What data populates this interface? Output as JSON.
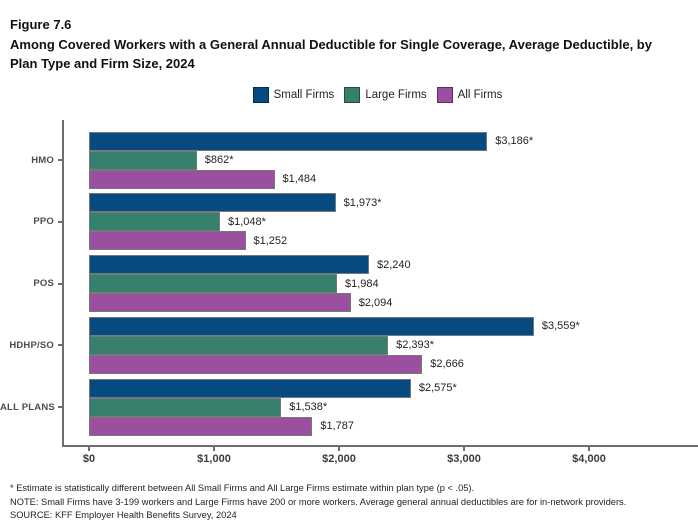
{
  "header": {
    "figure_label": "Figure 7.6",
    "title": "Among Covered Workers with a General Annual Deductible for Single Coverage, Average Deductible, by Plan Type and Firm Size, 2024"
  },
  "legend": [
    {
      "label": "Small Firms",
      "color": "#064a80"
    },
    {
      "label": "Large Firms",
      "color": "#38806e"
    },
    {
      "label": "All Firms",
      "color": "#9b509f"
    }
  ],
  "chart_data": {
    "type": "bar",
    "orientation": "horizontal",
    "title": "Among Covered Workers with a General Annual Deductible for Single Coverage, Average Deductible, by Plan Type and Firm Size, 2024",
    "categories": [
      "HMO",
      "PPO",
      "POS",
      "HDHP/SO",
      "ALL PLANS"
    ],
    "series": [
      {
        "name": "Small Firms",
        "color": "#064a80",
        "values": [
          3186,
          862,
          1484,
          1973,
          1048,
          1252,
          2240,
          1984,
          2094,
          3559,
          2393,
          2666,
          2575,
          1538,
          1787
        ],
        "note": "values field flattened is unused; see per_category"
      }
    ],
    "per_category": [
      {
        "category": "HMO",
        "bars": [
          {
            "series": "Small Firms",
            "value": 3186,
            "label": "$3,186*"
          },
          {
            "series": "Large Firms",
            "value": 862,
            "label": "$862*"
          },
          {
            "series": "All Firms",
            "value": 1484,
            "label": "$1,484"
          }
        ]
      },
      {
        "category": "PPO",
        "bars": [
          {
            "series": "Small Firms",
            "value": 1973,
            "label": "$1,973*"
          },
          {
            "series": "Large Firms",
            "value": 1048,
            "label": "$1,048*"
          },
          {
            "series": "All Firms",
            "value": 1252,
            "label": "$1,252"
          }
        ]
      },
      {
        "category": "POS",
        "bars": [
          {
            "series": "Small Firms",
            "value": 2240,
            "label": "$2,240"
          },
          {
            "series": "Large Firms",
            "value": 1984,
            "label": "$1,984"
          },
          {
            "series": "All Firms",
            "value": 2094,
            "label": "$2,094"
          }
        ]
      },
      {
        "category": "HDHP/SO",
        "bars": [
          {
            "series": "Small Firms",
            "value": 3559,
            "label": "$3,559*"
          },
          {
            "series": "Large Firms",
            "value": 2393,
            "label": "$2,393*"
          },
          {
            "series": "All Firms",
            "value": 2666,
            "label": "$2,666"
          }
        ]
      },
      {
        "category": "ALL PLANS",
        "bars": [
          {
            "series": "Small Firms",
            "value": 2575,
            "label": "$2,575*"
          },
          {
            "series": "Large Firms",
            "value": 1538,
            "label": "$1,538*"
          },
          {
            "series": "All Firms",
            "value": 1787,
            "label": "$1,787"
          }
        ]
      }
    ],
    "series_colors": {
      "Small Firms": "#064a80",
      "Large Firms": "#38806e",
      "All Firms": "#9b509f"
    },
    "x_axis": {
      "ticks": [
        0,
        1000,
        2000,
        3000,
        4000
      ],
      "tick_labels": [
        "$0",
        "$1,000",
        "$2,000",
        "$3,000",
        "$4,000"
      ],
      "min": 0,
      "max": 4800
    },
    "grid": false,
    "legend_position": "top"
  },
  "footnotes": [
    "* Estimate is statistically different between All Small Firms and All Large Firms estimate within plan type (p < .05).",
    "NOTE: Small Firms have 3-199 workers and Large Firms have 200 or more workers. Average general annual deductibles are for in-network providers.",
    "SOURCE: KFF Employer Health Benefits Survey, 2024"
  ]
}
